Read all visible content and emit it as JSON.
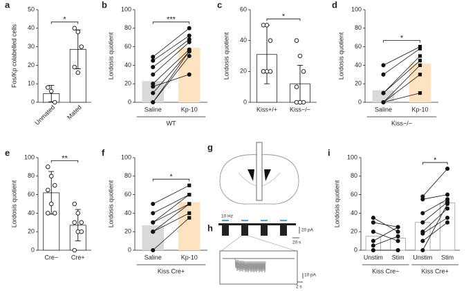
{
  "chart_data": [
    {
      "type": "bar-scatter",
      "label": "a",
      "ylabel": "Fos/Kp colabelled cells",
      "categories": [
        "Unmated",
        "Mated"
      ],
      "xtick_rotation": 45,
      "values": [
        4.7,
        28.6
      ],
      "errors": [
        4.4,
        10.5
      ],
      "points": [
        [
          8,
          6,
          0
        ],
        [
          40,
          38,
          30,
          19,
          16
        ]
      ],
      "ylim": [
        0,
        50
      ],
      "yticks": [
        0,
        10,
        20,
        30,
        40,
        50
      ],
      "significance": [
        "*"
      ],
      "colors": [
        "#ffffff",
        "#ffffff"
      ],
      "outline": "#222222"
    },
    {
      "type": "paired",
      "label": "b",
      "ylabel": "Lordosis quotient",
      "categories": [
        "Saline",
        "Kp-10"
      ],
      "group_labels": [
        "WT"
      ],
      "values": [
        23,
        59
      ],
      "points": [
        [
          49,
          45,
          38,
          30,
          20,
          10,
          0,
          0,
          17
        ],
        [
          80,
          72,
          68,
          65,
          57,
          55,
          55,
          50,
          30
        ]
      ],
      "markers": [
        "circle",
        "circle"
      ],
      "ylim": [
        0,
        100
      ],
      "yticks": [
        0,
        20,
        40,
        60,
        80,
        100
      ],
      "significance": [
        "***"
      ],
      "colors": [
        "#d9d9d9",
        "#fde3c0"
      ]
    },
    {
      "type": "bar-scatter",
      "label": "c",
      "ylabel": "Lordosis quotient",
      "categories": [
        "Kiss+/+",
        "Kiss−/−"
      ],
      "values": [
        31,
        12
      ],
      "errors": [
        19,
        12
      ],
      "points": [
        [
          50,
          50,
          40,
          20,
          20,
          20,
          20
        ],
        [
          40,
          30,
          20,
          10,
          0,
          0,
          0,
          0
        ]
      ],
      "ylim": [
        0,
        60
      ],
      "yticks": [
        0,
        20,
        40,
        60
      ],
      "significance": [
        "*"
      ],
      "colors": [
        "#ffffff",
        "#ffffff"
      ],
      "outline": "#222222"
    },
    {
      "type": "paired",
      "label": "d",
      "ylabel": "Lordosis quotient",
      "categories": [
        "Saline",
        "Kp-10"
      ],
      "group_labels": [
        "Kiss−/−"
      ],
      "values": [
        13,
        42
      ],
      "points": [
        [
          40,
          30,
          10,
          10,
          0,
          0,
          0
        ],
        [
          60,
          58,
          50,
          45,
          40,
          30,
          10
        ]
      ],
      "markers": [
        "circle",
        "square"
      ],
      "ylim": [
        0,
        100
      ],
      "yticks": [
        0,
        20,
        40,
        60,
        80,
        100
      ],
      "significance": [
        "*"
      ],
      "colors": [
        "#d9d9d9",
        "#fde3c0"
      ]
    },
    {
      "type": "bar-scatter",
      "label": "e",
      "ylabel": "Lordosis quotient",
      "categories": [
        "Cre−",
        "Cre+"
      ],
      "values": [
        62,
        27
      ],
      "errors": [
        23,
        17
      ],
      "points": [
        [
          90,
          80,
          70,
          65,
          50,
          40,
          40
        ],
        [
          50,
          40,
          30,
          30,
          20,
          20,
          0
        ]
      ],
      "ylim": [
        0,
        100
      ],
      "yticks": [
        0,
        20,
        40,
        60,
        80,
        100
      ],
      "significance": [
        "**"
      ],
      "colors": [
        "#ffffff",
        "#ffffff"
      ],
      "outline": "#222222"
    },
    {
      "type": "paired",
      "label": "f",
      "ylabel": "Lordosis quotient",
      "categories": [
        "Saline",
        "Kp-10"
      ],
      "group_labels": [
        "Kiss Cre+"
      ],
      "values": [
        27,
        52
      ],
      "points": [
        [
          50,
          40,
          30,
          30,
          20,
          20,
          0
        ],
        [
          70,
          60,
          50,
          60,
          40,
          50,
          35
        ]
      ],
      "markers": [
        "circle",
        "square"
      ],
      "ylim": [
        0,
        100
      ],
      "yticks": [
        0,
        20,
        40,
        60,
        80,
        100
      ],
      "significance": [
        "*"
      ],
      "colors": [
        "#d9d9d9",
        "#fde3c0"
      ]
    },
    {
      "type": "paired",
      "label": "i",
      "ylabel": "Lordosis quotient",
      "categories": [
        "Unstim",
        "Stim",
        "Unstim",
        "Stim"
      ],
      "group_labels": [
        "Kiss Cre−",
        "Kiss Cre+"
      ],
      "values": [
        15,
        13,
        30,
        51
      ],
      "points": [
        [
          35,
          30,
          20,
          10,
          5,
          0,
          0
        ],
        [
          20,
          25,
          10,
          25,
          15,
          0,
          0
        ],
        [
          58,
          55,
          40,
          30,
          20,
          18,
          10,
          0
        ],
        [
          88,
          60,
          55,
          52,
          45,
          35,
          30,
          50
        ]
      ],
      "markers": [
        "circle",
        "circle",
        "circle",
        "circle"
      ],
      "ylim": [
        0,
        100
      ],
      "yticks": [
        0,
        20,
        40,
        60,
        80,
        100
      ],
      "significance": [
        null,
        "*"
      ],
      "colors": [
        "#ffffff",
        "#ffffff",
        "#ffffff",
        "#ffffff"
      ],
      "outline": "#999999"
    }
  ],
  "diagram": {
    "label": "g"
  },
  "traces": {
    "label": "h",
    "stimulus": "10 Hz",
    "scale_top": [
      "20 pA",
      "20 s"
    ],
    "scale_inset": [
      "10 pA",
      "2 s"
    ]
  }
}
